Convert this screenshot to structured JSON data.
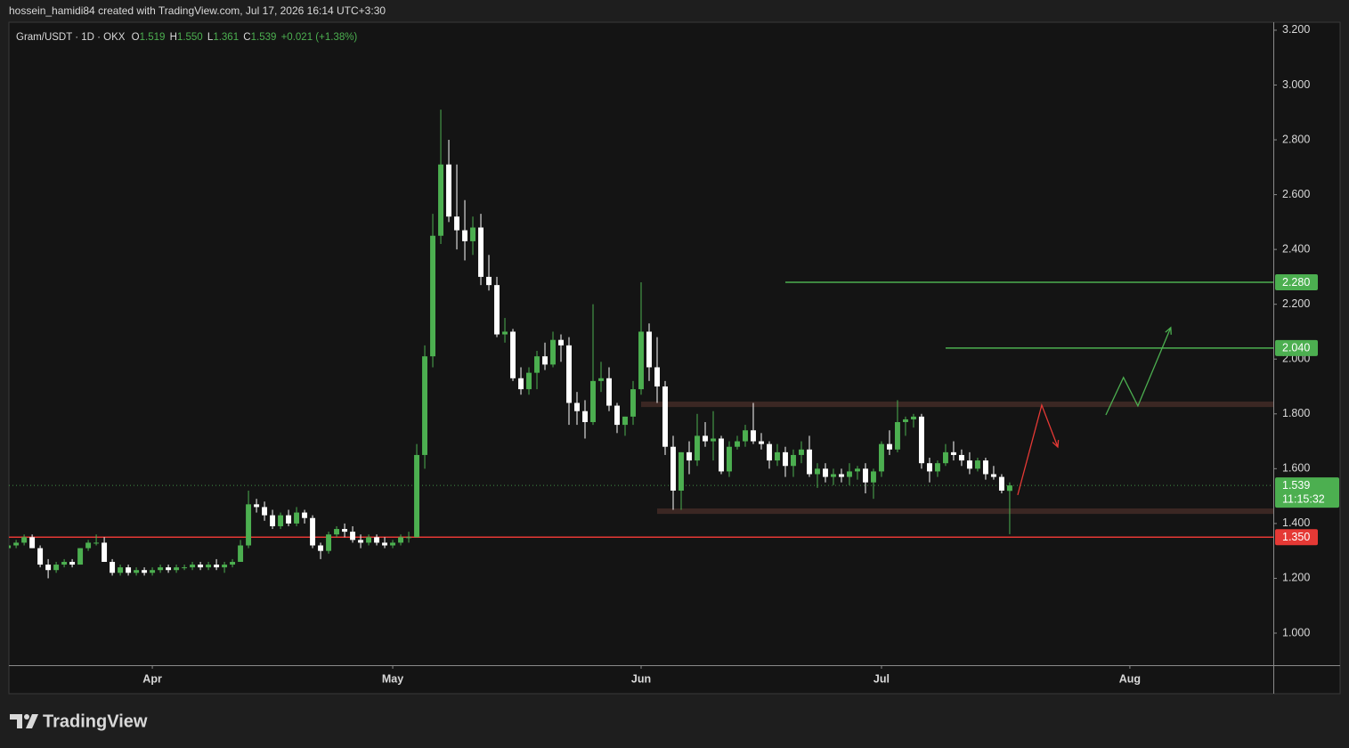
{
  "header": "hossein_hamidi84 created with TradingView.com, Jul 17, 2026 16:14 UTC+3:30",
  "footer": {
    "brand": "TradingView"
  },
  "chart_data": {
    "type": "candlestick",
    "title": "Gram/USDT · 1D · OKX",
    "ohlc_names": [
      "O",
      "H",
      "L",
      "C"
    ],
    "ohlc_values": [
      1.519,
      {
        "value": 1.55,
        "label": "1.550"
      },
      1.361,
      1.539
    ],
    "change": "+0.021 (+1.38%)",
    "up_color": "#4caf50",
    "down_color": "#ffffff",
    "open": [
      1.31,
      1.32,
      1.33,
      1.35,
      1.31,
      1.25,
      1.23,
      1.25,
      1.26,
      1.25,
      1.31,
      1.33,
      1.33,
      1.26,
      1.22,
      1.24,
      1.22,
      1.23,
      1.22,
      1.23,
      1.24,
      1.23,
      1.24,
      1.24,
      1.25,
      1.24,
      1.25,
      1.24,
      1.25,
      1.26,
      1.32,
      1.47,
      1.46,
      1.43,
      1.39,
      1.43,
      1.4,
      1.44,
      1.42,
      1.32,
      1.3,
      1.36,
      1.38,
      1.37,
      1.34,
      1.33,
      1.35,
      1.33,
      1.32,
      1.33,
      1.35,
      1.35,
      1.65,
      2.01,
      2.45,
      2.71,
      2.52,
      2.47,
      2.43,
      2.48,
      2.3,
      2.27,
      2.09,
      2.1,
      1.93,
      1.89,
      1.95,
      2.01,
      1.98,
      2.07,
      2.05,
      1.84,
      1.81,
      1.77,
      1.92,
      1.93,
      1.83,
      1.76,
      1.79,
      1.89,
      2.1,
      1.97,
      1.9,
      1.68,
      1.52,
      1.66,
      1.63,
      1.72,
      1.7,
      1.71,
      1.59,
      1.68,
      1.7,
      1.74,
      1.7,
      1.69,
      1.63,
      1.66,
      1.61,
      1.65,
      1.67,
      1.58,
      1.6,
      1.57,
      1.58,
      1.57,
      1.59,
      1.6,
      1.55,
      1.59,
      1.69,
      1.67,
      1.77,
      1.78,
      1.79,
      1.62,
      1.59,
      1.62,
      1.66,
      1.65,
      1.63,
      1.6,
      1.63,
      1.58,
      1.57,
      1.519
    ],
    "high": [
      1.32,
      1.34,
      1.36,
      1.36,
      1.32,
      1.27,
      1.26,
      1.27,
      1.27,
      1.31,
      1.34,
      1.36,
      1.35,
      1.27,
      1.25,
      1.25,
      1.24,
      1.24,
      1.24,
      1.25,
      1.25,
      1.25,
      1.25,
      1.26,
      1.26,
      1.26,
      1.27,
      1.26,
      1.27,
      1.34,
      1.52,
      1.49,
      1.48,
      1.45,
      1.44,
      1.45,
      1.46,
      1.45,
      1.43,
      1.33,
      1.37,
      1.39,
      1.4,
      1.39,
      1.36,
      1.36,
      1.36,
      1.35,
      1.34,
      1.36,
      1.37,
      1.69,
      2.05,
      2.53,
      2.91,
      2.8,
      2.71,
      2.58,
      2.52,
      2.53,
      2.38,
      2.3,
      2.15,
      2.11,
      1.97,
      1.97,
      2.03,
      2.06,
      2.1,
      2.09,
      2.08,
      1.88,
      1.85,
      2.2,
      1.99,
      1.97,
      1.84,
      1.79,
      1.92,
      2.28,
      2.13,
      2.08,
      1.92,
      1.72,
      1.66,
      1.7,
      1.8,
      1.77,
      1.81,
      1.72,
      1.7,
      1.72,
      1.76,
      1.84,
      1.73,
      1.7,
      1.69,
      1.68,
      1.67,
      1.7,
      1.72,
      1.62,
      1.62,
      1.6,
      1.6,
      1.62,
      1.61,
      1.62,
      1.6,
      1.7,
      1.74,
      1.85,
      1.79,
      1.8,
      1.8,
      1.64,
      1.63,
      1.69,
      1.7,
      1.67,
      1.66,
      1.64,
      1.64,
      1.61,
      1.58,
      1.55
    ],
    "low": [
      1.3,
      1.31,
      1.32,
      1.31,
      1.24,
      1.2,
      1.22,
      1.24,
      1.24,
      1.25,
      1.3,
      1.32,
      1.26,
      1.21,
      1.21,
      1.21,
      1.21,
      1.21,
      1.21,
      1.22,
      1.22,
      1.22,
      1.23,
      1.23,
      1.23,
      1.23,
      1.23,
      1.22,
      1.24,
      1.26,
      1.31,
      1.44,
      1.41,
      1.38,
      1.38,
      1.39,
      1.39,
      1.4,
      1.31,
      1.27,
      1.29,
      1.35,
      1.35,
      1.33,
      1.31,
      1.32,
      1.32,
      1.31,
      1.31,
      1.32,
      1.33,
      1.35,
      1.6,
      1.97,
      2.42,
      2.5,
      2.4,
      2.36,
      2.38,
      2.27,
      2.25,
      2.08,
      2.06,
      1.92,
      1.87,
      1.87,
      1.89,
      1.96,
      1.97,
      1.99,
      1.76,
      1.76,
      1.71,
      1.76,
      1.88,
      1.81,
      1.73,
      1.72,
      1.76,
      1.87,
      1.92,
      1.84,
      1.65,
      1.45,
      1.45,
      1.58,
      1.61,
      1.68,
      1.63,
      1.58,
      1.57,
      1.67,
      1.68,
      1.69,
      1.67,
      1.6,
      1.61,
      1.57,
      1.57,
      1.62,
      1.57,
      1.53,
      1.55,
      1.54,
      1.55,
      1.54,
      1.56,
      1.51,
      1.49,
      1.57,
      1.65,
      1.66,
      1.72,
      1.75,
      1.6,
      1.55,
      1.57,
      1.61,
      1.63,
      1.61,
      1.58,
      1.59,
      1.56,
      1.56,
      1.51,
      1.361
    ],
    "close": [
      1.32,
      1.33,
      1.35,
      1.31,
      1.25,
      1.23,
      1.25,
      1.26,
      1.25,
      1.31,
      1.33,
      1.33,
      1.26,
      1.22,
      1.24,
      1.22,
      1.23,
      1.22,
      1.23,
      1.24,
      1.23,
      1.24,
      1.24,
      1.25,
      1.24,
      1.25,
      1.24,
      1.25,
      1.26,
      1.32,
      1.47,
      1.46,
      1.43,
      1.39,
      1.43,
      1.4,
      1.44,
      1.42,
      1.32,
      1.3,
      1.36,
      1.38,
      1.37,
      1.34,
      1.33,
      1.35,
      1.33,
      1.32,
      1.33,
      1.35,
      1.35,
      1.65,
      2.01,
      2.45,
      2.71,
      2.52,
      2.47,
      2.43,
      2.48,
      2.3,
      2.27,
      2.09,
      2.1,
      1.93,
      1.89,
      1.95,
      2.01,
      1.98,
      2.07,
      2.05,
      1.84,
      1.81,
      1.77,
      1.92,
      1.93,
      1.83,
      1.76,
      1.79,
      1.89,
      2.1,
      1.97,
      1.9,
      1.68,
      1.52,
      1.66,
      1.63,
      1.72,
      1.7,
      1.71,
      1.59,
      1.68,
      1.7,
      1.74,
      1.7,
      1.69,
      1.63,
      1.66,
      1.61,
      1.65,
      1.67,
      1.58,
      1.6,
      1.57,
      1.58,
      1.57,
      1.59,
      1.6,
      1.55,
      1.59,
      1.69,
      1.67,
      1.77,
      1.78,
      1.79,
      1.62,
      1.59,
      1.62,
      1.66,
      1.65,
      1.63,
      1.6,
      1.63,
      1.58,
      1.57,
      1.52,
      1.539
    ],
    "xlim": [
      0.1,
      157.9
    ],
    "xticks": [
      {
        "value": 18,
        "label": "Apr"
      },
      {
        "value": 48,
        "label": "May"
      },
      {
        "value": 79,
        "label": "Jun"
      },
      {
        "value": 109,
        "label": "Jul"
      },
      {
        "value": 140,
        "label": "Aug"
      }
    ],
    "ylim": [
      0.883,
      3.229
    ],
    "yticks": [
      {
        "value": 1,
        "label": "1.000"
      },
      {
        "value": 1.2,
        "label": "1.200"
      },
      {
        "value": 1.4,
        "label": "1.400"
      },
      {
        "value": 1.6,
        "label": "1.600"
      },
      {
        "value": 1.8,
        "label": "1.800"
      },
      {
        "value": 2,
        "label": "2.000"
      },
      {
        "value": 2.2,
        "label": "2.200"
      },
      {
        "value": 2.4,
        "label": "2.400"
      },
      {
        "value": 2.6,
        "label": "2.600"
      },
      {
        "value": 2.8,
        "label": "2.800"
      },
      {
        "value": 3,
        "label": "3.000"
      },
      {
        "value": 3.2,
        "label": "3.200"
      }
    ],
    "levels": [
      {
        "price": {
          "value": 2.28,
          "label": "2.280"
        },
        "start": 97,
        "color": "#4caf50"
      },
      {
        "price": {
          "value": 2.04,
          "label": "2.040"
        },
        "start": 117,
        "color": "#4caf50"
      },
      {
        "price": {
          "value": 1.35,
          "label": "1.350"
        },
        "start": 0,
        "color": "#e53935"
      }
    ],
    "zones": [
      {
        "from": 1.825,
        "to": 1.845,
        "start": 79,
        "color": "#3b2723"
      },
      {
        "from": 1.435,
        "to": 1.455,
        "start": 81,
        "color": "#3b2723"
      }
    ],
    "drawings": [
      {
        "color": "#e53935",
        "points": [
          {
            "x": 126,
            "y": 1.504
          },
          {
            "x": 129,
            "y": 1.832
          },
          {
            "x": 131,
            "y": 1.679
          }
        ]
      },
      {
        "color": "#4caf50",
        "points": [
          {
            "x": 137,
            "y": 1.796
          },
          {
            "x": 139.2,
            "y": 1.933
          },
          {
            "x": 141,
            "y": 1.829
          },
          {
            "x": 145.1,
            "y": 2.115
          }
        ]
      }
    ],
    "last_price": {
      "price": {
        "value": 1.539,
        "label": "1.539"
      },
      "countdown": "11:15:32",
      "color": "#4caf50"
    }
  }
}
